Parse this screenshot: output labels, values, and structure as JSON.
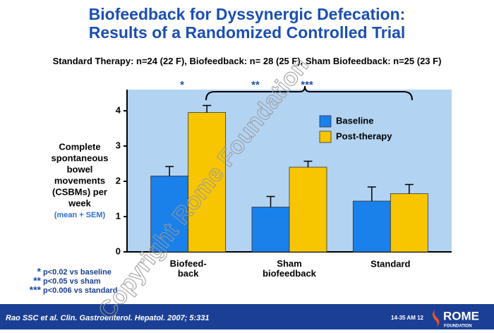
{
  "chart_data": {
    "type": "bar",
    "title": [
      "Biofeedback for Dyssynergic Defecation:",
      "Results of a Randomized Controlled Trial"
    ],
    "subtitle": "Standard Therapy: n=24 (22 F), Biofeedback: n= 28 (25 F), Sham Biofeedback: n=25 (23 F)",
    "y_label": [
      "Complete",
      "spontaneous",
      "bowel",
      "movements",
      "(CSBMs) per",
      "week"
    ],
    "y_label_note": "(mean + SEM)",
    "categories": [
      "Biofeed-\nback",
      "Sham\nbiofeedback",
      "Standard"
    ],
    "series": [
      {
        "name": "Baseline",
        "color": "#1a80ea",
        "values": [
          2.15,
          1.27,
          1.44
        ],
        "errors": [
          0.27,
          0.3,
          0.4
        ]
      },
      {
        "name": "Post-therapy",
        "color": "#f7c600",
        "values": [
          3.95,
          2.4,
          1.65
        ],
        "errors": [
          0.2,
          0.17,
          0.26
        ]
      }
    ],
    "ylim": [
      0,
      4.6
    ],
    "yticks": [
      0,
      1,
      2,
      3,
      4
    ],
    "significance": [
      "*",
      "**",
      "***"
    ],
    "footnotes": [
      {
        "mark": "*",
        "text": "p<0.02 vs baseline"
      },
      {
        "mark": "**",
        "text": "p<0.05 vs sham"
      },
      {
        "mark": "***",
        "text": "p<0.006    vs        standard"
      }
    ],
    "watermark": "Copyright Rome Foundation"
  },
  "footer": {
    "citation": "Rao SSC et al. Clin. Gastroenterol. Hepatol. 2007; 5:331",
    "slide_number": "14-35 AM 12",
    "logo": "ROME",
    "logo_sub": "FOUNDATION"
  }
}
